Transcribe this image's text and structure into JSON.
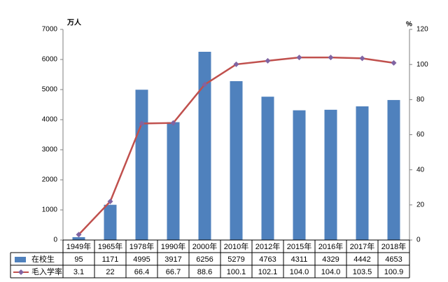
{
  "chart_data": {
    "type": "bar-line-table",
    "ylabel": "万人",
    "y2label": "%",
    "categories": [
      "1949年",
      "1965年",
      "1978年",
      "1990年",
      "2000年",
      "2010年",
      "2012年",
      "2015年",
      "2016年",
      "2017年",
      "2018年"
    ],
    "series": [
      {
        "name": "在校生",
        "type": "bar",
        "color": "#4f81bd",
        "values": [
          95,
          1171,
          4995,
          3917,
          6256,
          5279,
          4763,
          4311,
          4329,
          4442,
          4653
        ]
      },
      {
        "name": "毛入学率",
        "type": "line",
        "axis": "y2",
        "color": "#c0504d",
        "marker_color": "#8064a2",
        "values": [
          3.1,
          22,
          66.4,
          66.7,
          88.6,
          100.1,
          102.1,
          104.0,
          104.0,
          103.5,
          100.9
        ],
        "value_labels": [
          "3.1",
          "22",
          "66.4",
          "66.7",
          "88.6",
          "100.1",
          "102.1",
          "104.0",
          "104.0",
          "103.5",
          "100.9"
        ]
      }
    ],
    "ylim": [
      0,
      7000
    ],
    "yticks": [
      0,
      1000,
      2000,
      3000,
      4000,
      5000,
      6000,
      7000
    ],
    "y2lim": [
      0,
      120
    ],
    "y2ticks": [
      0,
      20,
      40,
      60,
      80,
      100,
      120
    ],
    "grid": false
  }
}
